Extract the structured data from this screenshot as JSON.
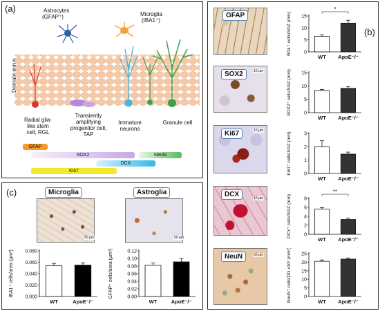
{
  "panel_a": {
    "label": "(a)",
    "astrocytes_label": "Astrocytes",
    "astrocytes_sub": "(GFAP⁺)",
    "microglia_label": "Microglia",
    "microglia_sub": "(IBA1⁺)",
    "region_label": "Dentate gyrus",
    "cell_types": [
      {
        "line1": "Radial glia-",
        "line2": "like stem",
        "line3": "cell, RGL"
      },
      {
        "line1": "Transiently",
        "line2": "amplifying",
        "line3": "progenitor cell,",
        "line4": "TAP"
      },
      {
        "line1": "Immature",
        "line2": "neurons"
      },
      {
        "line1": "Granule cell"
      }
    ],
    "markers": [
      {
        "name": "GFAP",
        "color": "#f39a2c"
      },
      {
        "name": "SOX2",
        "color": "#c9a6e8"
      },
      {
        "name": "DCX",
        "color": "#34b9e6"
      },
      {
        "name": "NeuN",
        "color": "#5cb85c"
      },
      {
        "name": "Ki67",
        "color": "#f2ea28"
      }
    ]
  },
  "panel_b": {
    "label": "(b)",
    "images": [
      {
        "stain": "GFAP",
        "scale": ""
      },
      {
        "stain": "SOX2",
        "scale": "10 µm"
      },
      {
        "stain": "Ki67",
        "scale": "10 µm"
      },
      {
        "stain": "DCX",
        "scale": "10 µm"
      },
      {
        "stain": "NeuN",
        "scale": "50 µm"
      }
    ]
  },
  "panel_c": {
    "label": "(c)",
    "images": [
      {
        "stain": "Microglia",
        "scale": "50 µm"
      },
      {
        "stain": "Astroglia",
        "scale": "50 µm"
      }
    ]
  },
  "chart_data": [
    {
      "id": "b1",
      "type": "bar",
      "categories": [
        "WT",
        "ApoE⁻/⁻"
      ],
      "values": [
        6.5,
        12
      ],
      "errors": [
        0.6,
        1.2
      ],
      "ylabel": "RGL⁺ cells/SGZ (mm)",
      "ylim": [
        0,
        15
      ],
      "ticks": [
        0,
        5,
        10,
        15
      ],
      "significance": "*"
    },
    {
      "id": "b2",
      "type": "bar",
      "categories": [
        "WT",
        "ApoE⁻/⁻"
      ],
      "values": [
        8.3,
        9.1
      ],
      "errors": [
        0.4,
        0.6
      ],
      "ylabel": "SOX2⁺ cells/SGZ (mm)",
      "ylim": [
        0,
        15
      ],
      "ticks": [
        0,
        5,
        10,
        15
      ],
      "significance": ""
    },
    {
      "id": "b3",
      "type": "bar",
      "categories": [
        "WT",
        "ApoE⁻/⁻"
      ],
      "values": [
        2.0,
        1.45
      ],
      "errors": [
        0.45,
        0.15
      ],
      "ylabel": "Ki67⁺ cells/SGZ (mm)",
      "ylim": [
        0,
        3
      ],
      "ticks": [
        0,
        1,
        2,
        3
      ],
      "significance": ""
    },
    {
      "id": "b4",
      "type": "bar",
      "categories": [
        "WT",
        "ApoE⁻/⁻"
      ],
      "values": [
        5.6,
        3.3
      ],
      "errors": [
        0.35,
        0.3
      ],
      "ylabel": "DCX⁺ cells/SGZ (mm)",
      "ylim": [
        0,
        8
      ],
      "ticks": [
        0,
        2,
        4,
        6,
        8
      ],
      "significance": "**"
    },
    {
      "id": "b5",
      "type": "bar",
      "categories": [
        "WT",
        "ApoE⁻/⁻"
      ],
      "values": [
        20.5,
        21.8
      ],
      "errors": [
        0.8,
        0.7
      ],
      "ylabel": "NeuN⁺ cells/DG x10³ (mm³)",
      "ylim": [
        0,
        25
      ],
      "ticks": [
        0,
        5,
        10,
        15,
        20,
        25
      ],
      "significance": ""
    },
    {
      "id": "c1",
      "type": "bar",
      "categories": [
        "WT",
        "ApoE⁻/⁻"
      ],
      "values": [
        0.054,
        0.055
      ],
      "errors": [
        0.004,
        0.004
      ],
      "ylabel": "IBA1⁺ cells/area (µm²)",
      "ylim": [
        0,
        0.08
      ],
      "ticks": [
        "0.000",
        "0.020",
        "0.040",
        "0.060",
        "0.080"
      ],
      "significance": ""
    },
    {
      "id": "c2",
      "type": "bar",
      "categories": [
        "WT",
        "ApoE⁻/⁻"
      ],
      "values": [
        0.082,
        0.091
      ],
      "errors": [
        0.006,
        0.009
      ],
      "ylabel": "GFAP⁺ cells/area (µm²)",
      "ylim": [
        0,
        0.12
      ],
      "ticks": [
        "0.00",
        "0.02",
        "0.04",
        "0.06",
        "0.08",
        "0.10",
        "0.12"
      ],
      "significance": ""
    }
  ]
}
